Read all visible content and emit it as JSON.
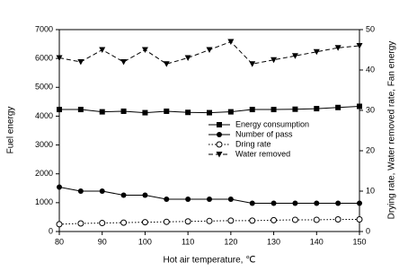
{
  "chart_data": {
    "type": "line",
    "x_label": "Hot air temperature, ℃",
    "y_label": "Fuel energy",
    "y2_label": "Drying rate, Water removed rate, Fan energy",
    "x": [
      80,
      85,
      90,
      95,
      100,
      105,
      110,
      115,
      120,
      125,
      130,
      135,
      140,
      145,
      150
    ],
    "xlim": [
      80,
      150
    ],
    "xticks": [
      80,
      90,
      100,
      110,
      120,
      130,
      140,
      150
    ],
    "ylim": [
      0,
      7000
    ],
    "yticks": [
      0,
      1000,
      2000,
      3000,
      4000,
      5000,
      6000,
      7000
    ],
    "y2lim": [
      0,
      50
    ],
    "y2ticks": [
      0,
      10,
      20,
      30,
      40,
      50
    ],
    "series": [
      {
        "name": "Energy consumption",
        "color": "#000000",
        "marker": "square",
        "line_style": "solid",
        "values": [
          4230,
          4230,
          4150,
          4170,
          4120,
          4170,
          4130,
          4120,
          4150,
          4230,
          4230,
          4240,
          4260,
          4300,
          4340
        ]
      },
      {
        "name": "Number of pass",
        "color": "#000000",
        "marker": "circle",
        "line_style": "solid",
        "axis": "y2",
        "values": [
          11,
          10,
          10,
          9,
          9,
          8,
          8,
          8,
          8,
          7,
          7,
          7,
          7,
          7,
          7
        ]
      },
      {
        "name": "Dring rate",
        "color": "#000000",
        "marker": "open-circle",
        "line_style": "dotted",
        "axis": "y2",
        "values": [
          1.8,
          2.0,
          2.1,
          2.2,
          2.3,
          2.4,
          2.5,
          2.6,
          2.7,
          2.7,
          2.8,
          2.9,
          2.9,
          3.0,
          3.0
        ]
      },
      {
        "name": "Water removed",
        "color": "#000000",
        "marker": "triangle-down",
        "line_style": "dashed",
        "axis": "y2",
        "values": [
          43,
          42,
          45,
          42,
          45,
          41.5,
          43,
          45,
          47,
          41.5,
          42.5,
          43.5,
          44.5,
          45.5,
          46
        ]
      }
    ]
  }
}
